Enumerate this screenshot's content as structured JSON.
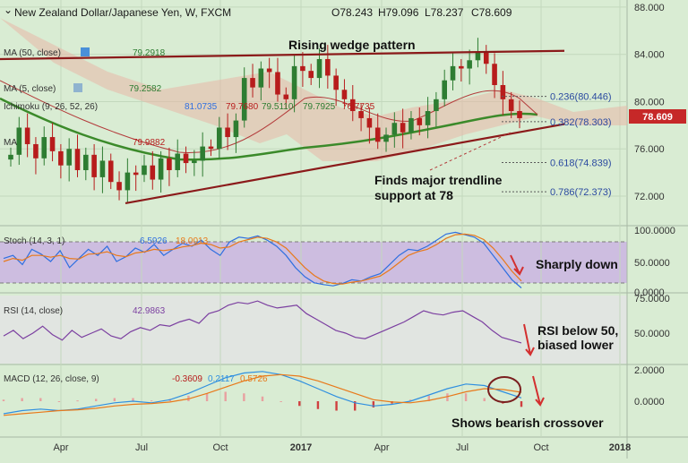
{
  "header": {
    "symbol_title": "New Zealand Dollar/Japanese Yen, W, FXCM",
    "open": "O78.243",
    "high": "H79.096",
    "low": "L78.237",
    "close": "C78.609",
    "last_price": "78.609"
  },
  "indicators": {
    "ma50": {
      "label": "MA (50, close)",
      "value": "79.2918"
    },
    "ma5": {
      "label": "MA (5, close)",
      "value": "79.2582"
    },
    "ichimoku": {
      "label": "Ichimoku (9, 26, 52, 26)",
      "values": [
        "81.0735",
        "79.7680",
        "79.5110",
        "79.7925",
        "76.7735"
      ]
    },
    "ma_extra": {
      "label": "MA",
      "value": "79.9882"
    },
    "stoch": {
      "label": "Stoch (14, 3, 1)",
      "k": "6.5926",
      "d": "18.0013"
    },
    "rsi": {
      "label": "RSI (14, close)",
      "value": "42.9863"
    },
    "macd": {
      "label": "MACD (12, 26, close, 9)",
      "hist": "-0.3609",
      "macd": "0.2117",
      "signal": "0.5726"
    }
  },
  "annotations": {
    "pattern": "Rising wedge pattern",
    "trendline_1": "Finds major trendline",
    "trendline_2": "support at 78",
    "stoch_note": "Sharply down",
    "rsi_note_1": "RSI below 50,",
    "rsi_note_2": "biased lower",
    "macd_note": "Shows bearish crossover"
  },
  "fib_levels": [
    {
      "label": "0.236(80.446)",
      "value": 80.446
    },
    {
      "label": "0.382(78.303)",
      "value": 78.303
    },
    {
      "label": "0.618(74.839)",
      "value": 74.839
    },
    {
      "label": "0.786(72.373)",
      "value": 72.373
    }
  ],
  "chart_data": {
    "type": "candlestick",
    "price_axis": {
      "ticks": [
        "88.000",
        "84.000",
        "80.000",
        "76.000",
        "72.000"
      ],
      "ylim": [
        69.5,
        88.6
      ]
    },
    "stoch_axis": {
      "ticks": [
        "100.0000",
        "50.0000",
        "0.0000"
      ]
    },
    "rsi_axis": {
      "ticks": [
        "75.0000",
        "50.0000"
      ]
    },
    "macd_axis": {
      "ticks": [
        "2.0000",
        "0.0000"
      ]
    },
    "x_ticks": [
      "Apr",
      "Jul",
      "Oct",
      "2017",
      "Apr",
      "Jul",
      "Oct",
      "2018"
    ],
    "close_path": [
      75.5,
      77.8,
      76.4,
      75.2,
      77.0,
      75.8,
      74.6,
      76.0,
      74.2,
      75.5,
      73.6,
      75.0,
      73.2,
      72.5,
      74.0,
      73.8,
      74.6,
      73.4,
      75.2,
      74.2,
      75.6,
      74.8,
      75.0,
      76.2,
      76.0,
      77.8,
      77.0,
      78.4,
      82.0,
      81.2,
      82.8,
      82.5,
      80.6,
      80.2,
      83.0,
      82.6,
      82.0,
      83.6,
      82.2,
      81.0,
      80.2,
      79.2,
      78.6,
      77.8,
      76.6,
      77.2,
      78.2,
      77.4,
      78.6,
      78.0,
      79.2,
      80.2,
      81.8,
      83.0,
      82.8,
      83.5,
      84.2,
      83.2,
      81.4,
      80.2,
      79.2,
      78.6
    ],
    "trendline_lower": [
      {
        "x": 0.2,
        "y": 71.4
      },
      {
        "x": 0.9,
        "y": 78.1
      }
    ],
    "trendline_upper": [
      {
        "x": 0.0,
        "y": 83.6
      },
      {
        "x": 0.9,
        "y": 84.3
      }
    ],
    "stoch_k": [
      55,
      60,
      45,
      70,
      62,
      50,
      68,
      40,
      55,
      70,
      60,
      75,
      50,
      58,
      72,
      65,
      78,
      60,
      70,
      80,
      75,
      85,
      70,
      60,
      82,
      90,
      88,
      92,
      85,
      75,
      60,
      40,
      25,
      15,
      12,
      10,
      14,
      20,
      18,
      25,
      30,
      45,
      60,
      70,
      68,
      75,
      85,
      95,
      98,
      94,
      90,
      80,
      60,
      40,
      20,
      6.6
    ],
    "stoch_d": [
      50,
      55,
      52,
      60,
      60,
      57,
      60,
      55,
      54,
      62,
      63,
      66,
      60,
      58,
      64,
      66,
      70,
      68,
      70,
      74,
      76,
      80,
      78,
      72,
      74,
      82,
      86,
      90,
      88,
      82,
      72,
      56,
      40,
      27,
      18,
      14,
      13,
      16,
      18,
      22,
      26,
      36,
      48,
      60,
      66,
      70,
      78,
      88,
      94,
      95,
      93,
      86,
      72,
      54,
      34,
      18
    ],
    "rsi": [
      48,
      52,
      46,
      50,
      55,
      49,
      45,
      52,
      47,
      50,
      53,
      48,
      46,
      51,
      54,
      52,
      56,
      55,
      58,
      60,
      57,
      64,
      66,
      70,
      72,
      71,
      73,
      70,
      68,
      69,
      70,
      64,
      60,
      56,
      52,
      50,
      47,
      46,
      49,
      52,
      55,
      58,
      62,
      66,
      64,
      63,
      65,
      66,
      62,
      58,
      52,
      47,
      45,
      43
    ],
    "macd": [
      -0.8,
      -0.6,
      -0.5,
      -0.6,
      -0.5,
      -0.3,
      -0.1,
      0.0,
      -0.1,
      0.1,
      0.5,
      1.0,
      1.5,
      1.8,
      1.9,
      1.7,
      1.3,
      0.8,
      0.3,
      -0.1,
      -0.3,
      -0.2,
      0.0,
      0.4,
      0.8,
      1.1,
      1.0,
      0.6,
      0.21
    ],
    "signal": [
      -0.9,
      -0.8,
      -0.7,
      -0.6,
      -0.55,
      -0.45,
      -0.3,
      -0.2,
      -0.15,
      -0.05,
      0.15,
      0.5,
      0.9,
      1.3,
      1.6,
      1.7,
      1.6,
      1.3,
      0.9,
      0.5,
      0.1,
      -0.05,
      -0.1,
      0.05,
      0.3,
      0.6,
      0.8,
      0.75,
      0.57
    ]
  },
  "colors": {
    "background": "#d9ecd3",
    "up_candle": "#2e7d32",
    "down_candle": "#b71c1c",
    "trendline": "#8b1a1a",
    "ma50": "#3b8a2a",
    "price_tag": "#c62828",
    "fib": "#2b4aa0",
    "stoch_k": "#2f6fe0",
    "stoch_d": "#e8791a",
    "rsi": "#7b3fa0",
    "macd": "#2f8fe0",
    "signal": "#e8791a"
  }
}
